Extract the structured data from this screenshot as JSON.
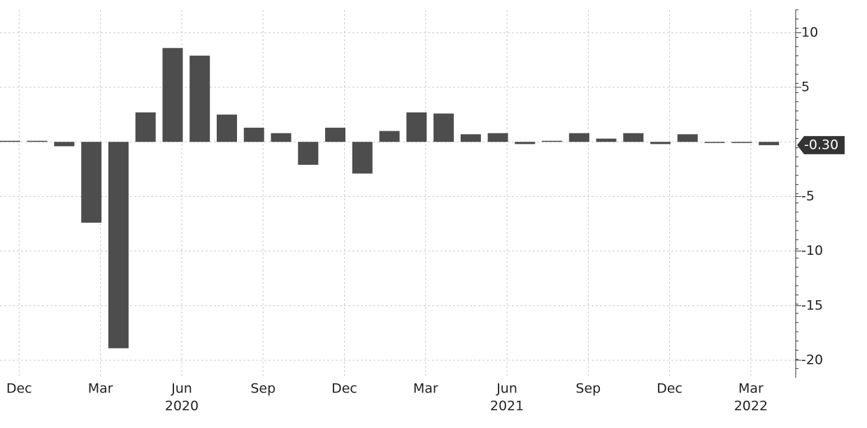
{
  "chart_data": {
    "type": "bar",
    "categories": [
      "Dec",
      null,
      null,
      "Mar",
      null,
      null,
      "Jun",
      null,
      null,
      "Sep",
      null,
      null,
      "Dec",
      null,
      null,
      "Mar",
      null,
      null,
      "Jun",
      null,
      null,
      "Sep",
      null,
      null,
      "Dec",
      null,
      null,
      "Mar",
      null
    ],
    "years": [
      null,
      null,
      null,
      null,
      null,
      null,
      "2020",
      null,
      null,
      null,
      null,
      null,
      null,
      null,
      null,
      null,
      null,
      null,
      "2021",
      null,
      null,
      null,
      null,
      null,
      null,
      null,
      null,
      "2022",
      null
    ],
    "values": [
      0.1,
      0.1,
      -0.4,
      -7.4,
      -18.9,
      2.7,
      8.6,
      7.9,
      2.5,
      1.3,
      0.8,
      -2.1,
      1.3,
      -2.9,
      1.0,
      2.7,
      2.6,
      0.7,
      0.8,
      -0.2,
      0.1,
      0.8,
      0.3,
      0.8,
      -0.2,
      0.7,
      -0.1,
      -0.1,
      -0.3
    ],
    "value_labels": [
      null,
      null,
      null,
      null,
      null,
      null,
      null,
      null,
      null,
      null,
      null,
      null,
      null,
      null,
      null,
      null,
      null,
      null,
      null,
      null,
      null,
      null,
      null,
      null,
      null,
      null,
      null,
      null,
      "-0.30"
    ],
    "color": "#4d4d4d",
    "ylim": [
      -21.6,
      12.1
    ],
    "yticks": [
      10,
      5,
      -5,
      -10,
      -15,
      -20
    ],
    "grid": true
  }
}
